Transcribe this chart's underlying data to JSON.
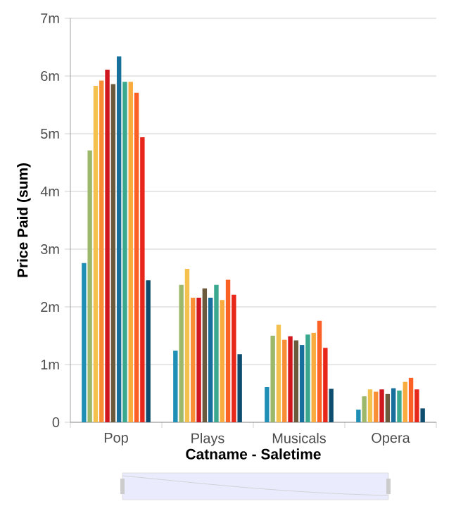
{
  "chart_data": {
    "type": "bar",
    "xlabel": "Catname - Saletime",
    "ylabel": "Price Paid (sum)",
    "categories": [
      "Pop",
      "Plays",
      "Musicals",
      "Opera"
    ],
    "series": [
      {
        "color": "#1f8fb5",
        "values": [
          2.76,
          1.24,
          0.61,
          0.22
        ]
      },
      {
        "color": "#9cb86a",
        "values": [
          4.71,
          2.38,
          1.5,
          0.45
        ]
      },
      {
        "color": "#f4c04e",
        "values": [
          5.83,
          2.66,
          1.69,
          0.57
        ]
      },
      {
        "color": "#f98e35",
        "values": [
          5.92,
          2.16,
          1.43,
          0.53
        ]
      },
      {
        "color": "#d0161e",
        "values": [
          6.11,
          2.16,
          1.49,
          0.57
        ]
      },
      {
        "color": "#6b5a3c",
        "values": [
          5.86,
          2.32,
          1.42,
          0.49
        ]
      },
      {
        "color": "#16709b",
        "values": [
          6.34,
          2.16,
          1.34,
          0.59
        ]
      },
      {
        "color": "#3aa88e",
        "values": [
          5.9,
          2.38,
          1.52,
          0.55
        ]
      },
      {
        "color": "#f9ac3d",
        "values": [
          5.9,
          2.12,
          1.55,
          0.7
        ]
      },
      {
        "color": "#fb6124",
        "values": [
          5.71,
          2.47,
          1.76,
          0.77
        ]
      },
      {
        "color": "#e8271b",
        "values": [
          4.94,
          2.21,
          1.29,
          0.57
        ]
      },
      {
        "color": "#0e4d6e",
        "values": [
          2.46,
          1.18,
          0.58,
          0.24
        ]
      }
    ],
    "ylim": [
      0,
      7
    ],
    "yticks": [
      0,
      {
        "value": 1,
        "label": "1m"
      },
      {
        "value": 2,
        "label": "2m"
      },
      {
        "value": 3,
        "label": "3m"
      },
      {
        "value": 4,
        "label": "4m"
      },
      {
        "value": 5,
        "label": "5m"
      },
      {
        "value": 6,
        "label": "6m"
      },
      {
        "value": 7,
        "label": "7m"
      }
    ],
    "grid": "y"
  }
}
